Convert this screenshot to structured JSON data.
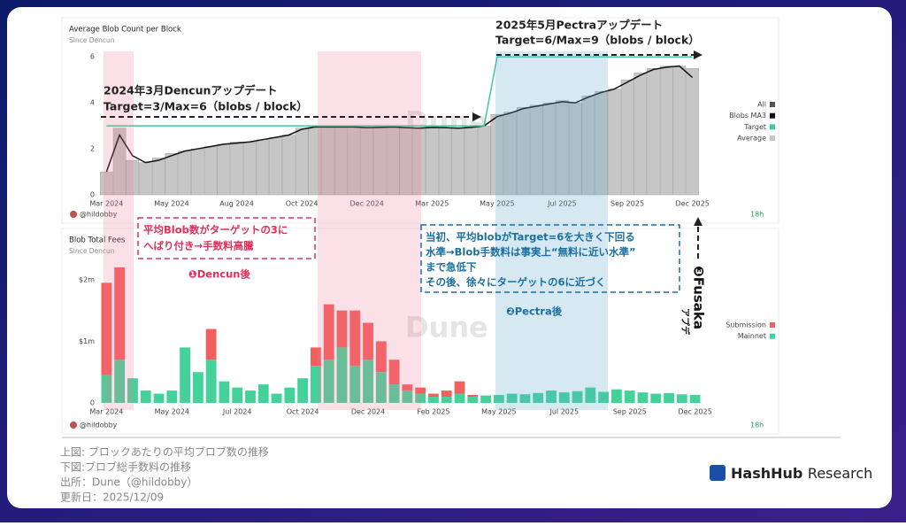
{
  "chart_data": [
    {
      "type": "bar",
      "title": "Average Blob Count per Block",
      "subtitle": "Since Dencun",
      "author": "@hildobby",
      "age": "18h",
      "watermark": "Dune",
      "categories": [
        "Mar 2024",
        null,
        null,
        null,
        null,
        "May 2024",
        null,
        null,
        null,
        null,
        "Aug 2024",
        null,
        null,
        null,
        null,
        "Oct 2024",
        null,
        null,
        null,
        null,
        "Dec 2024",
        null,
        null,
        null,
        null,
        "Mar 2025",
        null,
        null,
        null,
        null,
        "May 2025",
        null,
        null,
        null,
        null,
        "Jul 2025",
        null,
        null,
        null,
        null,
        "Sep 2025",
        null,
        null,
        null,
        null,
        "Dec 2025"
      ],
      "ylim": [
        0,
        6.2
      ],
      "yticks": [
        0,
        2,
        4,
        6
      ],
      "grid": false,
      "legend_header": {
        "name": "All",
        "color": "#555555"
      },
      "series": [
        {
          "name": "Blobs MA3",
          "type": "line",
          "color": "#111111",
          "values": [
            1.0,
            2.6,
            1.7,
            1.4,
            1.5,
            1.7,
            1.9,
            2.0,
            2.1,
            2.2,
            2.25,
            2.3,
            2.4,
            2.5,
            2.6,
            2.85,
            2.95,
            2.95,
            2.95,
            2.95,
            2.92,
            2.93,
            2.95,
            2.92,
            2.9,
            2.93,
            2.92,
            2.9,
            2.93,
            3.0,
            3.4,
            3.55,
            3.75,
            3.85,
            3.95,
            4.05,
            4.0,
            4.25,
            4.45,
            4.6,
            4.9,
            5.2,
            5.45,
            5.55,
            5.6,
            5.1
          ]
        },
        {
          "name": "Target",
          "type": "line",
          "color": "#3cc9a0",
          "values": [
            3,
            3,
            3,
            3,
            3,
            3,
            3,
            3,
            3,
            3,
            3,
            3,
            3,
            3,
            3,
            3,
            3,
            3,
            3,
            3,
            3,
            3,
            3,
            3,
            3,
            3,
            3,
            3,
            3,
            3,
            6,
            6,
            6,
            6,
            6,
            6,
            6,
            6,
            6,
            6,
            6,
            6,
            6,
            6,
            6,
            6
          ]
        },
        {
          "name": "Average",
          "type": "bar",
          "color": "#c6c6c6",
          "values": [
            1.0,
            2.9,
            1.5,
            1.4,
            1.6,
            1.8,
            1.9,
            2.0,
            2.1,
            2.2,
            2.3,
            2.3,
            2.4,
            2.5,
            2.6,
            2.9,
            2.95,
            2.95,
            2.95,
            2.95,
            2.9,
            2.95,
            2.95,
            2.9,
            2.9,
            2.95,
            2.9,
            2.9,
            2.95,
            3.0,
            3.5,
            3.6,
            3.8,
            3.9,
            4.0,
            4.1,
            4.0,
            4.3,
            4.5,
            4.6,
            5.0,
            5.3,
            5.5,
            5.6,
            5.6,
            5.5
          ]
        }
      ]
    },
    {
      "type": "stacked_bar",
      "title": "Blob Total Fees",
      "subtitle": "Since Dencun",
      "author": "@hildobby",
      "age": "18h",
      "watermark": "Dune",
      "categories": [
        "Mar 2024",
        null,
        null,
        null,
        null,
        "May 2024",
        null,
        null,
        null,
        null,
        "Jul 2024",
        null,
        null,
        null,
        null,
        "Oct 2024",
        null,
        null,
        null,
        null,
        "Dec 2024",
        null,
        null,
        null,
        null,
        "Feb 2025",
        null,
        null,
        null,
        null,
        "May 2025",
        null,
        null,
        null,
        null,
        "Jul 2025",
        null,
        null,
        null,
        null,
        "Sep 2025",
        null,
        null,
        null,
        null,
        "Dec 2025"
      ],
      "ylim": [
        0,
        2400000
      ],
      "yticks": [
        0,
        {
          "value": 1000000,
          "label": "$1m"
        },
        {
          "value": 2000000,
          "label": "$2m"
        }
      ],
      "grid": false,
      "series": [
        {
          "name": "Submission",
          "color": "#f2605e",
          "values": [
            1500000,
            1500000,
            0,
            0,
            0,
            0,
            0,
            0,
            500000,
            0,
            0,
            0,
            0,
            0,
            0,
            0,
            300000,
            900000,
            600000,
            900000,
            600000,
            500000,
            400000,
            100000,
            100000,
            50000,
            100000,
            200000,
            30000,
            0,
            0,
            0,
            0,
            0,
            0,
            0,
            0,
            0,
            0,
            0,
            0,
            0,
            0,
            0,
            0,
            0
          ]
        },
        {
          "name": "Mainnet",
          "color": "#43d39a",
          "values": [
            450000,
            700000,
            400000,
            200000,
            150000,
            200000,
            900000,
            500000,
            700000,
            350000,
            250000,
            200000,
            300000,
            150000,
            250000,
            400000,
            600000,
            700000,
            900000,
            600000,
            700000,
            500000,
            300000,
            200000,
            150000,
            100000,
            100000,
            150000,
            100000,
            120000,
            130000,
            150000,
            140000,
            160000,
            200000,
            170000,
            190000,
            250000,
            180000,
            220000,
            200000,
            170000,
            150000,
            160000,
            140000,
            130000
          ]
        }
      ]
    }
  ],
  "annotations": {
    "dencun": [
      "2024年3月Dencunアップデート",
      "Target=3/Max=6（blobs / block）"
    ],
    "pectra": [
      "2025年5月Pectraアップデート",
      "Target=6/Max=9（blobs / block）"
    ],
    "red_box": [
      "平均Blob数がターゲットの3に",
      "へばり付き→手数料高騰"
    ],
    "red_label": "❶Dencun後",
    "blue_box": [
      "当初、平均blobがTarget=6を大きく下回る",
      "水準→Blob手数料は事実上“無料に近い水準”",
      "まで急低下",
      "その後、徐々にターゲットの6に近づく"
    ],
    "blue_label": "❷Pectra後",
    "fusaka": "❸Fusaka",
    "fusaka_sub": "アプデ"
  },
  "captions": [
    "上図: ブロックあたりの平均ブロブ数の推移",
    "下図:ブロブ総手数料の推移",
    "出所：Dune（@hildobby）",
    "更新日：2025/12/09"
  ],
  "brand": {
    "name": "HashHub",
    "suffix": "Research"
  }
}
